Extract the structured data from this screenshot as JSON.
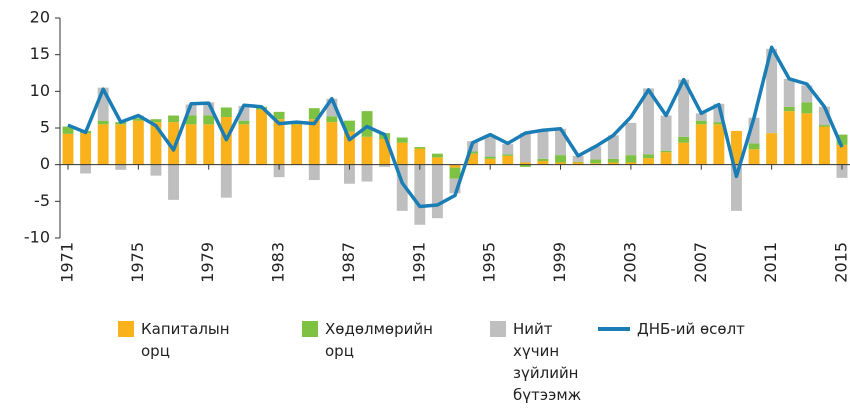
{
  "chart_data": {
    "type": "bar",
    "x": [
      1971,
      1972,
      1973,
      1974,
      1975,
      1976,
      1977,
      1978,
      1979,
      1980,
      1981,
      1982,
      1983,
      1984,
      1985,
      1986,
      1987,
      1988,
      1989,
      1990,
      1991,
      1992,
      1993,
      1994,
      1995,
      1996,
      1997,
      1998,
      1999,
      2000,
      2001,
      2002,
      2003,
      2004,
      2005,
      2006,
      2007,
      2008,
      2009,
      2010,
      2011,
      2012,
      2013,
      2014,
      2015
    ],
    "xlim": [
      1971,
      2015
    ],
    "xticks": [
      1971,
      1975,
      1979,
      1983,
      1987,
      1991,
      1995,
      1999,
      2003,
      2007,
      2011,
      2015
    ],
    "ylim": [
      -10,
      20
    ],
    "yticks": [
      -10,
      -5,
      0,
      5,
      10,
      15,
      20
    ],
    "grid": false,
    "stacked": true,
    "series": [
      {
        "name": "Капиталын орц",
        "color": "#f9b21b",
        "type": "bar",
        "values": [
          4.2,
          4.3,
          5.5,
          5.5,
          6.0,
          5.8,
          5.8,
          5.5,
          5.5,
          6.5,
          5.5,
          7.5,
          6.2,
          5.5,
          6.2,
          5.8,
          4.5,
          3.8,
          3.5,
          3.0,
          2.2,
          1.0,
          -0.4,
          1.5,
          0.8,
          1.2,
          0.3,
          0.5,
          0.3,
          0.3,
          0.2,
          0.3,
          0.3,
          0.9,
          1.7,
          3.0,
          5.5,
          5.5,
          4.6,
          2.1,
          4.3,
          7.3,
          7.0,
          5.2,
          2.7
        ]
      },
      {
        "name": "Хөдөлмөрийн орц",
        "color": "#7dc242",
        "type": "bar",
        "values": [
          1.0,
          0.3,
          0.5,
          0.3,
          0.3,
          0.4,
          0.9,
          1.2,
          1.2,
          1.3,
          0.5,
          0.4,
          1.0,
          0.3,
          1.5,
          0.8,
          1.5,
          3.5,
          0.8,
          0.7,
          0.2,
          0.5,
          -1.5,
          0.3,
          0.3,
          0.2,
          -0.3,
          0.3,
          1.0,
          0.1,
          0.5,
          0.5,
          1.0,
          0.5,
          0.2,
          0.8,
          0.5,
          0.3,
          0.0,
          0.8,
          0.0,
          0.6,
          1.5,
          0.2,
          1.4
        ]
      },
      {
        "name": "Нийт хүчин зүйлийн бүтээмж",
        "color": "#bfbfbf",
        "type": "bar",
        "values": [
          0.0,
          -1.2,
          4.5,
          -0.7,
          0.4,
          -1.5,
          -4.8,
          1.5,
          1.8,
          -4.5,
          2.0,
          0.0,
          -1.7,
          0.0,
          -2.1,
          2.4,
          -2.6,
          -2.3,
          -0.3,
          -6.3,
          -8.2,
          -7.3,
          -2.0,
          1.4,
          2.9,
          1.4,
          4.0,
          3.8,
          3.6,
          0.8,
          1.8,
          3.2,
          4.4,
          9.0,
          4.8,
          7.8,
          1.0,
          2.5,
          -6.3,
          3.5,
          11.5,
          3.8,
          2.3,
          2.5,
          -1.8
        ]
      },
      {
        "name": "ДНБ-ий өсөлт",
        "color": "#1a7db5",
        "type": "line",
        "values": [
          5.4,
          4.4,
          10.3,
          5.8,
          6.7,
          5.3,
          2.0,
          8.3,
          8.4,
          3.4,
          8.1,
          7.9,
          5.6,
          5.8,
          5.6,
          9.0,
          3.4,
          5.2,
          4.1,
          -2.5,
          -5.7,
          -5.5,
          -4.2,
          3.0,
          4.1,
          2.9,
          4.3,
          4.7,
          4.9,
          1.2,
          2.5,
          4.0,
          6.5,
          10.2,
          6.7,
          11.6,
          7.0,
          8.2,
          -1.6,
          6.4,
          16.0,
          11.7,
          11.0,
          7.9,
          2.4
        ]
      }
    ]
  }
}
